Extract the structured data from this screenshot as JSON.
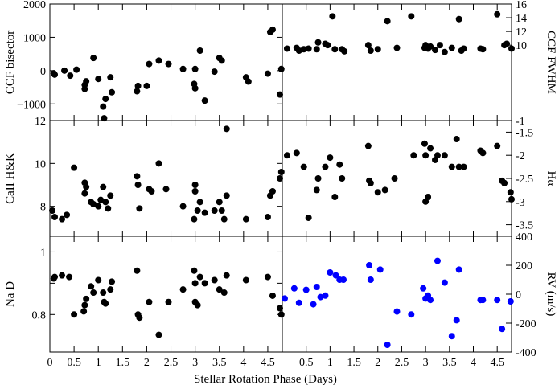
{
  "figure": {
    "xlabel": "Stellar Rotation Phase (Days)"
  },
  "chart_data": [
    {
      "type": "scatter",
      "panel": "left-top",
      "ylabel": "CCF bisector",
      "xlim": [
        0,
        4.8
      ],
      "ylim": [
        -1500,
        2000
      ],
      "yticks": [
        -1000,
        0,
        1000,
        2000
      ],
      "ytick_labels": [
        "−1000",
        "0",
        "1000",
        "2000"
      ],
      "marker_color": "#000000",
      "points": [
        [
          0.08,
          -80
        ],
        [
          0.1,
          -120
        ],
        [
          0.3,
          0
        ],
        [
          0.42,
          -150
        ],
        [
          0.55,
          30
        ],
        [
          0.72,
          -550
        ],
        [
          0.72,
          -430
        ],
        [
          0.75,
          -320
        ],
        [
          0.9,
          380
        ],
        [
          1.0,
          -250
        ],
        [
          1.1,
          -1080
        ],
        [
          1.12,
          -1430
        ],
        [
          1.15,
          -850
        ],
        [
          1.25,
          -200
        ],
        [
          1.28,
          -650
        ],
        [
          1.8,
          -620
        ],
        [
          1.82,
          -460
        ],
        [
          2.0,
          -460
        ],
        [
          2.05,
          200
        ],
        [
          2.25,
          300
        ],
        [
          2.45,
          200
        ],
        [
          2.75,
          50
        ],
        [
          2.98,
          -400
        ],
        [
          3.0,
          -530
        ],
        [
          3.0,
          50
        ],
        [
          3.1,
          600
        ],
        [
          3.2,
          -900
        ],
        [
          3.4,
          -30
        ],
        [
          3.5,
          380
        ],
        [
          3.55,
          300
        ],
        [
          3.65,
          -1750
        ],
        [
          4.05,
          -200
        ],
        [
          4.1,
          -330
        ],
        [
          4.5,
          -90
        ],
        [
          4.55,
          1160
        ],
        [
          4.6,
          1230
        ],
        [
          4.75,
          -720
        ],
        [
          4.78,
          50
        ]
      ]
    },
    {
      "type": "scatter",
      "panel": "right-top",
      "ylabel": "CCF FWHM",
      "xlim": [
        0,
        4.8
      ],
      "ylim": [
        -1,
        16
      ],
      "yticks": [
        -1,
        10,
        12,
        14,
        16
      ],
      "ytick_labels": [
        "-1",
        "10",
        "12",
        "14",
        "16"
      ],
      "marker_color": "#000000",
      "points": [
        [
          0.1,
          9.5
        ],
        [
          0.3,
          9.6
        ],
        [
          0.35,
          9.2
        ],
        [
          0.45,
          9.4
        ],
        [
          0.55,
          9.5
        ],
        [
          0.72,
          9.4
        ],
        [
          0.75,
          10.4
        ],
        [
          0.9,
          10.2
        ],
        [
          0.95,
          10.0
        ],
        [
          1.05,
          14.2
        ],
        [
          1.1,
          9.4
        ],
        [
          1.25,
          9.4
        ],
        [
          1.3,
          9.1
        ],
        [
          1.8,
          10.0
        ],
        [
          1.85,
          9.2
        ],
        [
          2.0,
          9.4
        ],
        [
          2.2,
          13.5
        ],
        [
          2.4,
          9.6
        ],
        [
          2.7,
          14.2
        ],
        [
          2.98,
          9.6
        ],
        [
          3.0,
          10.0
        ],
        [
          3.05,
          9.5
        ],
        [
          3.1,
          9.8
        ],
        [
          3.2,
          9.3
        ],
        [
          3.3,
          10.0
        ],
        [
          3.4,
          9.0
        ],
        [
          3.55,
          9.6
        ],
        [
          3.7,
          13.8
        ],
        [
          3.75,
          9.2
        ],
        [
          3.8,
          9.5
        ],
        [
          4.15,
          9.5
        ],
        [
          4.2,
          9.4
        ],
        [
          4.5,
          14.5
        ],
        [
          4.65,
          10.0
        ],
        [
          4.7,
          10.2
        ],
        [
          4.8,
          9.5
        ]
      ]
    },
    {
      "type": "scatter",
      "panel": "left-middle",
      "ylabel": "CaII H&K",
      "xlim": [
        0,
        4.8
      ],
      "ylim": [
        6.6,
        12
      ],
      "yticks": [
        8,
        10,
        12
      ],
      "ytick_labels": [
        "8",
        "10",
        "12"
      ],
      "marker_color": "#000000",
      "points": [
        [
          0.05,
          7.8
        ],
        [
          0.1,
          7.5
        ],
        [
          0.25,
          7.4
        ],
        [
          0.35,
          7.6
        ],
        [
          0.5,
          9.8
        ],
        [
          0.72,
          8.6
        ],
        [
          0.72,
          9.1
        ],
        [
          0.75,
          8.9
        ],
        [
          0.85,
          8.2
        ],
        [
          0.9,
          8.1
        ],
        [
          1.0,
          8.0
        ],
        [
          1.05,
          8.3
        ],
        [
          1.1,
          8.9
        ],
        [
          1.15,
          8.2
        ],
        [
          1.2,
          7.9
        ],
        [
          1.25,
          8.5
        ],
        [
          1.8,
          9.4
        ],
        [
          1.82,
          9.0
        ],
        [
          1.85,
          7.9
        ],
        [
          2.05,
          8.8
        ],
        [
          2.1,
          8.7
        ],
        [
          2.25,
          10.0
        ],
        [
          2.4,
          8.8
        ],
        [
          2.75,
          8.0
        ],
        [
          2.98,
          7.4
        ],
        [
          3.0,
          9.0
        ],
        [
          3.0,
          8.7
        ],
        [
          3.05,
          7.8
        ],
        [
          3.1,
          8.2
        ],
        [
          3.2,
          7.7
        ],
        [
          3.4,
          7.8
        ],
        [
          3.5,
          8.2
        ],
        [
          3.55,
          7.8
        ],
        [
          3.6,
          7.4
        ],
        [
          3.65,
          8.5
        ],
        [
          4.05,
          7.4
        ],
        [
          4.5,
          7.5
        ],
        [
          4.55,
          8.5
        ],
        [
          4.6,
          8.7
        ],
        [
          4.75,
          9.3
        ],
        [
          4.78,
          9.6
        ]
      ]
    },
    {
      "type": "scatter",
      "panel": "right-middle",
      "ylabel": "Hα",
      "xlim": [
        0,
        4.8
      ],
      "ylim": [
        -3.75,
        -1.25
      ],
      "yticks": [
        -3.5,
        -3,
        -2.5,
        -2,
        -1.5
      ],
      "ytick_labels": [
        "-3.5",
        "-3",
        "-2.5",
        "-2",
        "-1.5"
      ],
      "marker_color": "#000000",
      "points": [
        [
          0.1,
          -2.0
        ],
        [
          0.3,
          -1.95
        ],
        [
          0.45,
          -2.25
        ],
        [
          0.55,
          -3.35
        ],
        [
          0.72,
          -2.75
        ],
        [
          0.75,
          -2.5
        ],
        [
          0.9,
          -2.25
        ],
        [
          1.0,
          -2.05
        ],
        [
          1.1,
          -2.9
        ],
        [
          1.2,
          -2.2
        ],
        [
          1.25,
          -2.5
        ],
        [
          1.8,
          -1.8
        ],
        [
          1.82,
          -2.55
        ],
        [
          1.85,
          -2.6
        ],
        [
          2.0,
          -2.8
        ],
        [
          2.15,
          -2.75
        ],
        [
          2.35,
          -2.5
        ],
        [
          2.75,
          -2.0
        ],
        [
          2.98,
          -1.75
        ],
        [
          3.0,
          -2.0
        ],
        [
          3.0,
          -3.0
        ],
        [
          3.05,
          -2.9
        ],
        [
          3.1,
          -1.85
        ],
        [
          3.2,
          -2.1
        ],
        [
          3.25,
          -2.0
        ],
        [
          3.4,
          -2.0
        ],
        [
          3.55,
          -2.25
        ],
        [
          3.65,
          -1.65
        ],
        [
          3.7,
          -2.25
        ],
        [
          3.8,
          -2.25
        ],
        [
          4.15,
          -1.9
        ],
        [
          4.2,
          -1.95
        ],
        [
          4.5,
          -1.8
        ],
        [
          4.6,
          -2.55
        ],
        [
          4.65,
          -2.6
        ],
        [
          4.78,
          -2.8
        ],
        [
          4.8,
          -2.95
        ]
      ]
    },
    {
      "type": "scatter",
      "panel": "left-bottom",
      "ylabel": "Na D",
      "xlim": [
        0,
        4.8
      ],
      "ylim": [
        0.68,
        1.05
      ],
      "yticks": [
        0.8,
        0.9,
        1.0
      ],
      "ytick_labels": [
        "0.8",
        "",
        "1"
      ],
      "marker_color": "#000000",
      "points": [
        [
          0.08,
          0.915
        ],
        [
          0.1,
          0.92
        ],
        [
          0.25,
          0.925
        ],
        [
          0.4,
          0.92
        ],
        [
          0.5,
          0.8
        ],
        [
          0.7,
          0.81
        ],
        [
          0.72,
          0.83
        ],
        [
          0.75,
          0.85
        ],
        [
          0.85,
          0.89
        ],
        [
          0.9,
          0.87
        ],
        [
          1.0,
          0.91
        ],
        [
          1.1,
          0.87
        ],
        [
          1.12,
          0.84
        ],
        [
          1.15,
          0.835
        ],
        [
          1.25,
          0.88
        ],
        [
          1.28,
          0.905
        ],
        [
          1.8,
          0.94
        ],
        [
          1.82,
          0.8
        ],
        [
          1.85,
          0.79
        ],
        [
          2.05,
          0.84
        ],
        [
          2.25,
          0.735
        ],
        [
          2.45,
          0.84
        ],
        [
          2.75,
          0.88
        ],
        [
          2.98,
          0.94
        ],
        [
          3.0,
          0.9
        ],
        [
          3.0,
          0.84
        ],
        [
          3.05,
          0.83
        ],
        [
          3.1,
          0.92
        ],
        [
          3.2,
          0.9
        ],
        [
          3.4,
          0.91
        ],
        [
          3.5,
          0.88
        ],
        [
          3.6,
          0.87
        ],
        [
          3.65,
          0.925
        ],
        [
          4.05,
          0.91
        ],
        [
          4.5,
          0.92
        ],
        [
          4.6,
          0.86
        ],
        [
          4.75,
          0.82
        ],
        [
          4.78,
          0.8
        ]
      ]
    },
    {
      "type": "scatter",
      "panel": "right-bottom",
      "ylabel": "RV (m/s)",
      "xlim": [
        0,
        4.8
      ],
      "ylim": [
        -400,
        400
      ],
      "yticks": [
        -400,
        -200,
        0,
        200,
        400
      ],
      "ytick_labels": [
        "-400",
        "-200",
        "0",
        "200",
        "400"
      ],
      "marker_color": "#0000ff",
      "points": [
        [
          0.05,
          -30
        ],
        [
          0.25,
          40
        ],
        [
          0.35,
          -60
        ],
        [
          0.5,
          30
        ],
        [
          0.65,
          -70
        ],
        [
          0.72,
          50
        ],
        [
          0.8,
          -20
        ],
        [
          0.9,
          -10
        ],
        [
          1.0,
          150
        ],
        [
          1.12,
          130
        ],
        [
          1.2,
          100
        ],
        [
          1.28,
          100
        ],
        [
          1.82,
          200
        ],
        [
          1.85,
          100
        ],
        [
          2.05,
          170
        ],
        [
          2.2,
          -350
        ],
        [
          2.4,
          -120
        ],
        [
          2.7,
          -140
        ],
        [
          2.95,
          40
        ],
        [
          3.0,
          -30
        ],
        [
          3.05,
          -10
        ],
        [
          3.1,
          -40
        ],
        [
          3.25,
          230
        ],
        [
          3.4,
          80
        ],
        [
          3.55,
          -290
        ],
        [
          3.65,
          -180
        ],
        [
          3.7,
          170
        ],
        [
          4.15,
          -40
        ],
        [
          4.2,
          -40
        ],
        [
          4.5,
          -40
        ],
        [
          4.6,
          -240
        ],
        [
          4.78,
          -50
        ]
      ]
    }
  ]
}
